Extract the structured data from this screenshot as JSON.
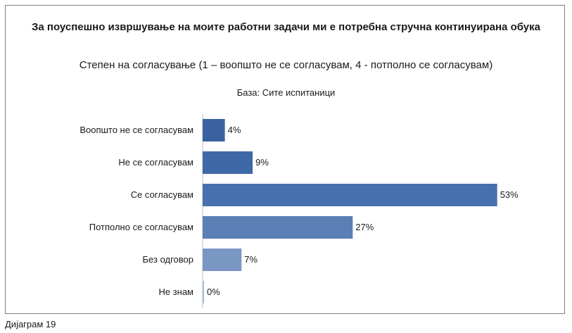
{
  "chart_data": {
    "type": "bar",
    "orientation": "horizontal",
    "title": "За поуспешно извршување на моите работни задачи ми е потребна стручна континуирана обука",
    "subtitle": "Степен на согласување (1 – воопшто не се согласувам, 4 - потполно се согласувам)",
    "base_note": "База: Сите испитаници",
    "categories": [
      "Воопшто не се согласувам",
      "Не се согласувам",
      "Се согласувам",
      "Потполно се согласувам",
      "Без одговор",
      "Не знам"
    ],
    "values": [
      4,
      9,
      53,
      27,
      7,
      0
    ],
    "value_labels": [
      "4%",
      "9%",
      "53%",
      "27%",
      "7%",
      "0%"
    ],
    "bar_colors": [
      "#3a62a0",
      "#3f69a6",
      "#4771ae",
      "#5a7fb4",
      "#7a97c4",
      "#9fb3d6"
    ],
    "grid": false,
    "legend": "none"
  },
  "footer": {
    "caption": "Дијаграм 19"
  }
}
